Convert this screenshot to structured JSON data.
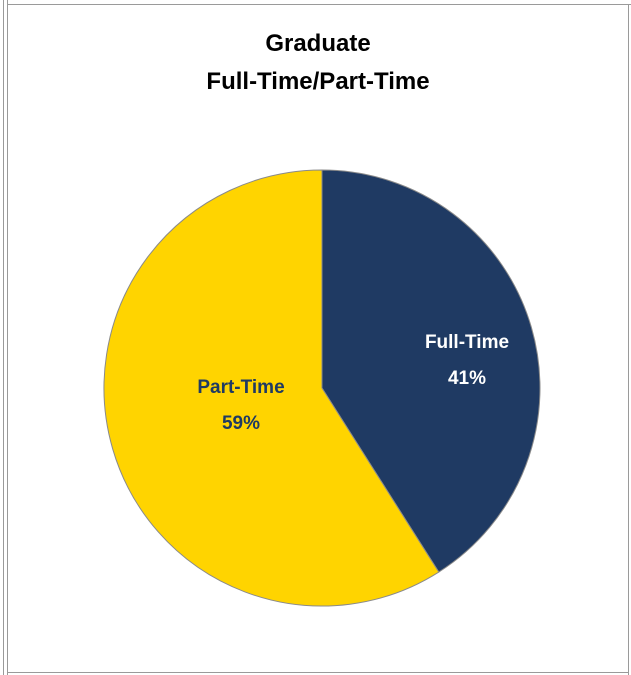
{
  "chart_data": {
    "type": "pie",
    "title": [
      "Graduate",
      "Full-Time/Part-Time"
    ],
    "slices": [
      {
        "name": "Full-Time",
        "value": 41,
        "label": "Full-Time",
        "pct_label": "41%",
        "color": "#1f3a63",
        "label_color": "#ffffff"
      },
      {
        "name": "Part-Time",
        "value": 59,
        "label": "Part-Time",
        "pct_label": "59%",
        "color": "#ffd400",
        "label_color": "#1f3a63"
      }
    ],
    "start_angle_deg": 0,
    "direction": "clockwise",
    "legend": "none"
  }
}
